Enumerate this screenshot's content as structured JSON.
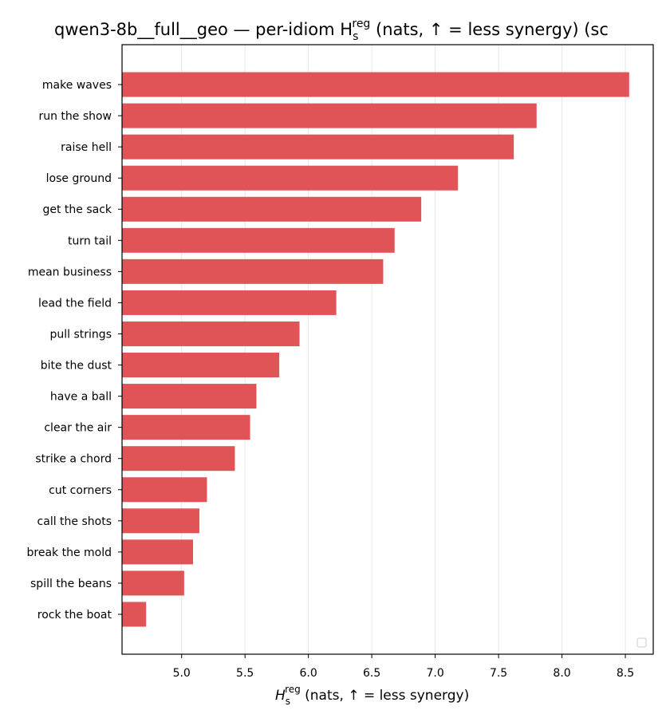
{
  "chart_data": {
    "type": "bar",
    "orientation": "horizontal",
    "title": "qwen3-8b__full__geo — per-idiom H",
    "title_math_sub": "s",
    "title_math_sup": "reg",
    "title_suffix": " (nats, ↑ = less synergy) (sc",
    "xlabel_math": "H",
    "xlabel_math_sub": "s",
    "xlabel_math_sup": "reg",
    "xlabel_suffix": " (nats, ↑ = less synergy)",
    "ylabel": "",
    "xlim": [
      4.53,
      8.72
    ],
    "xticks": [
      5.0,
      5.5,
      6.0,
      6.5,
      7.0,
      7.5,
      8.0,
      8.5
    ],
    "xtick_labels": [
      "5.0",
      "5.5",
      "6.0",
      "6.5",
      "7.0",
      "7.5",
      "8.0",
      "8.5"
    ],
    "grid": "vertical",
    "legend_placement": "lower right",
    "bar_color": "#e05356",
    "categories": [
      "make waves",
      "run the show",
      "raise hell",
      "lose ground",
      "get the sack",
      "turn tail",
      "mean business",
      "lead the field",
      "pull strings",
      "bite the dust",
      "have a ball",
      "clear the air",
      "strike a chord",
      "cut corners",
      "call the shots",
      "break the mold",
      "spill the beans",
      "rock the boat"
    ],
    "values": [
      8.53,
      7.8,
      7.62,
      7.18,
      6.89,
      6.68,
      6.59,
      6.22,
      5.93,
      5.77,
      5.59,
      5.54,
      5.42,
      5.2,
      5.14,
      5.09,
      5.02,
      4.72
    ]
  }
}
